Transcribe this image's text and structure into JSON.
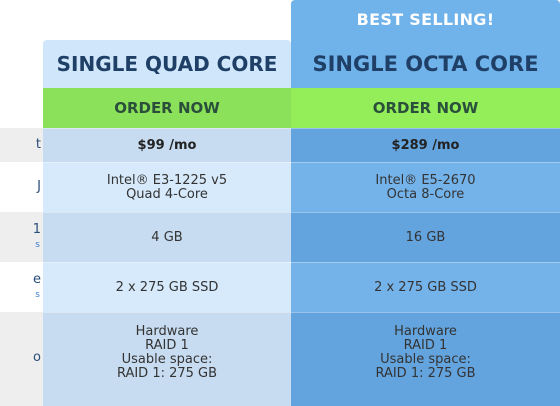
{
  "row_labels": {
    "price": "t",
    "cpu": "J",
    "ram": "1",
    "ram_sub": "s",
    "disk": "e",
    "disk_sub": "s",
    "raid": "o"
  },
  "plans": [
    {
      "title": "SINGLE QUAD CORE",
      "order_label": "ORDER NOW",
      "price": "$99 /mo",
      "cpu_line1": "Intel® E3-1225 v5",
      "cpu_line2": "Quad 4-Core",
      "ram": "4 GB",
      "disk": "2 x 275 GB SSD",
      "raid_lines": [
        "Hardware",
        "RAID 1",
        "Usable space:",
        "RAID 1: 275 GB"
      ]
    },
    {
      "badge": "BEST SELLING!",
      "title": "SINGLE OCTA CORE",
      "order_label": "ORDER NOW",
      "price": "$289 /mo",
      "cpu_line1": "Intel® E5-2670",
      "cpu_line2": "Octa 8-Core",
      "ram": "16 GB",
      "disk": "2 x 275 GB SSD",
      "raid_lines": [
        "Hardware",
        "RAID 1",
        "Usable space:",
        "RAID 1: 275 GB"
      ]
    }
  ],
  "colors": {
    "order_button": "#8ce15a",
    "octa_accent": "#6fb3ea",
    "quad_header": "#cfe6fb",
    "title_text": "#1f3f66"
  }
}
